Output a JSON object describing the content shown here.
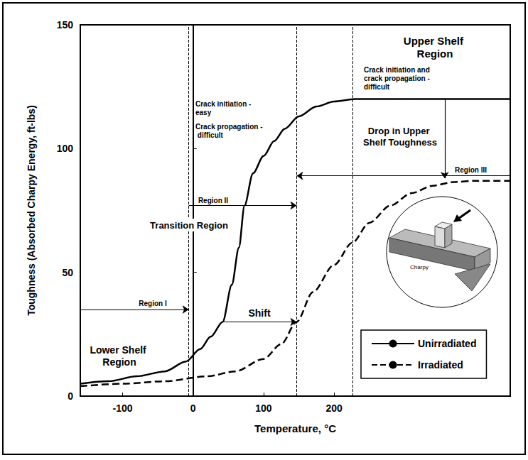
{
  "chart_data": {
    "type": "line",
    "x_label": "Temperature, °C",
    "y_label": "Toughness (Absorbed Charpy Energy, ft-lbs)",
    "xlim": [
      -160,
      450
    ],
    "xticks": [
      -100,
      0,
      100,
      200
    ],
    "ylim": [
      0,
      150
    ],
    "yticks": [
      0,
      50,
      100,
      150
    ],
    "grid": false,
    "legend": "lower right",
    "series": [
      {
        "name": "Unirradiated",
        "color": "#000000",
        "line_style": "solid",
        "x": [
          -160,
          -120,
          -80,
          -40,
          -10,
          10,
          25,
          42,
          55,
          65,
          73,
          85,
          100,
          115,
          130,
          150,
          175,
          200,
          230,
          300,
          450
        ],
        "values": [
          5,
          6,
          8,
          10,
          14,
          19,
          24,
          30,
          45,
          60,
          77,
          90,
          97,
          103,
          108,
          113,
          117,
          119,
          120,
          120,
          120
        ]
      },
      {
        "name": "Irradiated",
        "color": "#000000",
        "line_style": "dashed",
        "x": [
          -160,
          -100,
          -40,
          20,
          60,
          100,
          125,
          147,
          170,
          200,
          226,
          250,
          280,
          310,
          340,
          370,
          400,
          450
        ],
        "values": [
          4,
          5,
          6,
          8,
          10,
          15,
          21,
          30,
          42,
          53,
          62,
          70,
          77,
          82,
          85,
          86.5,
          87,
          87
        ]
      }
    ],
    "region_lines": [
      -6,
      147,
      226
    ],
    "arrows": [
      {
        "x": [
          -160,
          -6
        ],
        "y": [
          35,
          35
        ]
      },
      {
        "x": [
          -6,
          147
        ],
        "y": [
          77,
          77
        ]
      },
      {
        "x": [
          450,
          147
        ],
        "y": [
          89,
          89
        ]
      },
      {
        "x": [
          42,
          147
        ],
        "y": [
          30,
          30
        ]
      },
      {
        "x": [
          357,
          357
        ],
        "y": [
          120,
          88
        ]
      }
    ],
    "annotations": [
      "Upper Shelf Region",
      "Crack initiation and crack propagation - difficult",
      "Crack initiation - easy",
      "Crack propagation - difficult",
      "Drop in Upper Shelf Toughness",
      "Region III",
      "Region II",
      "Transition Region",
      "Region I",
      "Shift",
      "Lower Shelf Region",
      "Charpy"
    ]
  }
}
